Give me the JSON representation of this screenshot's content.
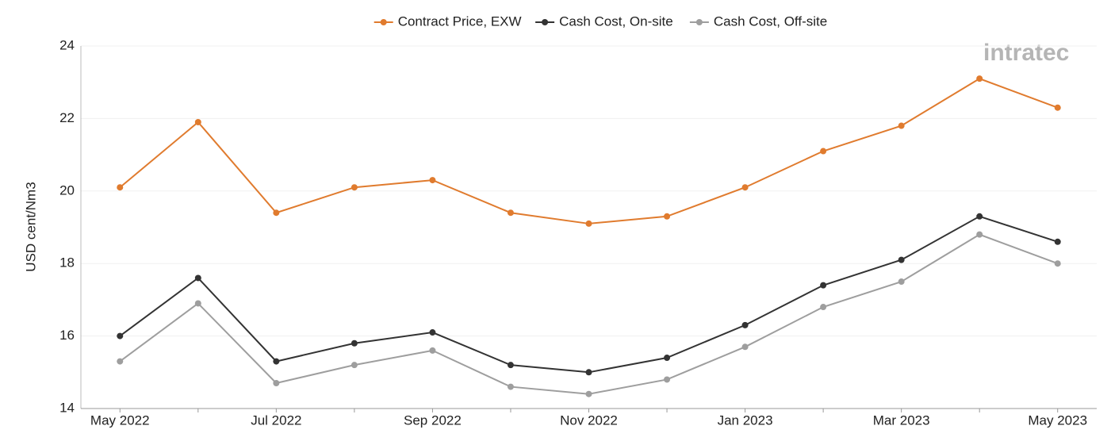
{
  "chart_data": {
    "type": "line",
    "y_label": "USD cent/Nm3",
    "watermark": "intratec",
    "categories": [
      "May 2022",
      null,
      "Jul 2022",
      null,
      "Sep 2022",
      null,
      "Nov 2022",
      null,
      "Jan 2023",
      null,
      "Mar 2023",
      null,
      "May 2023"
    ],
    "series": [
      {
        "name": "Contract Price, EXW",
        "color": "#e07b2e",
        "values": [
          20.1,
          21.9,
          19.4,
          20.1,
          20.3,
          19.4,
          19.1,
          19.3,
          20.1,
          21.1,
          21.8,
          23.1,
          22.3
        ]
      },
      {
        "name": "Cash Cost, On-site",
        "color": "#333333",
        "values": [
          16.0,
          17.6,
          15.3,
          15.8,
          16.1,
          15.2,
          15.0,
          15.4,
          16.3,
          17.4,
          18.1,
          19.3,
          18.6
        ]
      },
      {
        "name": "Cash Cost, Off-site",
        "color": "#9e9e9e",
        "values": [
          15.3,
          16.9,
          14.7,
          15.2,
          15.6,
          14.6,
          14.4,
          14.8,
          15.7,
          16.8,
          17.5,
          18.8,
          18.0
        ]
      }
    ],
    "ylim": [
      14,
      24
    ],
    "yticks": [
      14,
      16,
      18,
      20,
      22,
      24
    ],
    "grid": true,
    "legend": "top"
  }
}
